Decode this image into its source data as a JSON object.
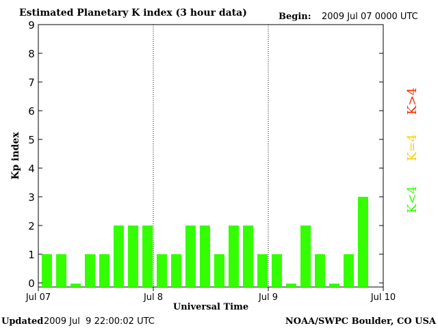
{
  "header": {
    "title": "Estimated Planetary K index (3 hour data)",
    "begin_label": "Begin:",
    "begin_value": "2009 Jul 07 0000 UTC"
  },
  "footer": {
    "updated_label": "Updated",
    "updated_value": "2009 Jul  9 22:00:02 UTC",
    "source": "NOAA/SWPC Boulder, CO USA"
  },
  "legend": [
    {
      "label": "K>4",
      "color": "#ff2a00"
    },
    {
      "label": "K=4",
      "color": "#ffd000"
    },
    {
      "label": "K<4",
      "color": "#33ff00"
    }
  ],
  "chart_data": {
    "type": "bar",
    "title": "Estimated Planetary K index (3 hour data)",
    "xlabel": "Universal Time",
    "ylabel": "Kp index",
    "ylim": [
      0,
      9
    ],
    "yticks": [
      0,
      1,
      2,
      3,
      4,
      5,
      6,
      7,
      8,
      9
    ],
    "xticks": [
      "Jul 07",
      "Jul 8",
      "Jul 9",
      "Jul 10"
    ],
    "grid": "vertical dotted day separators",
    "bar_color": "#33ff00",
    "slots_per_day": 8,
    "days": 3,
    "values": [
      1,
      1,
      0,
      1,
      1,
      2,
      2,
      2,
      1,
      1,
      2,
      2,
      1,
      2,
      2,
      1,
      1,
      0,
      2,
      1,
      0,
      1,
      3
    ]
  }
}
